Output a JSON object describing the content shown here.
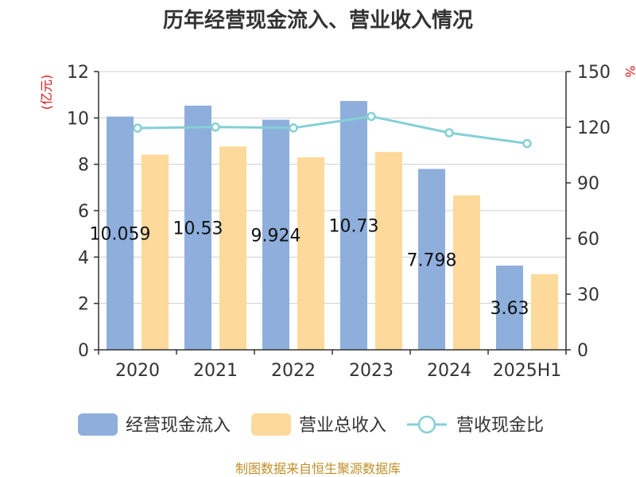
{
  "chart_data": {
    "type": "bar",
    "title": "历年经营现金流入、营业收入情况",
    "categories": [
      "2020",
      "2021",
      "2022",
      "2023",
      "2024",
      "2025H1"
    ],
    "left_axis": {
      "unit": "(亿元)",
      "range": [
        0,
        12
      ],
      "ticks": [
        0,
        2,
        4,
        6,
        8,
        10,
        12
      ]
    },
    "right_axis": {
      "unit": "%",
      "range": [
        0,
        150
      ],
      "ticks": [
        0,
        30,
        60,
        90,
        120,
        150
      ]
    },
    "series": [
      {
        "name": "经营现金流入",
        "kind": "bar",
        "axis": "left",
        "color": "#8eaedc",
        "values": [
          10.059,
          10.53,
          9.924,
          10.73,
          7.798,
          3.63
        ],
        "labels": [
          "10.059",
          "10.53",
          "9.924",
          "10.73",
          "7.798",
          "3.63"
        ]
      },
      {
        "name": "营业总收入",
        "kind": "bar",
        "axis": "left",
        "color": "#fdd99b",
        "values": [
          8.42,
          8.77,
          8.3,
          8.53,
          6.66,
          3.26
        ]
      },
      {
        "name": "营收现金比",
        "kind": "line",
        "axis": "right",
        "color": "#84d0d4",
        "values": [
          119.5,
          120.1,
          119.6,
          125.8,
          117.0,
          111.2
        ]
      }
    ],
    "grid": true,
    "legend_position": "bottom"
  },
  "footer": {
    "source": "制图数据来自恒生聚源数据库"
  }
}
